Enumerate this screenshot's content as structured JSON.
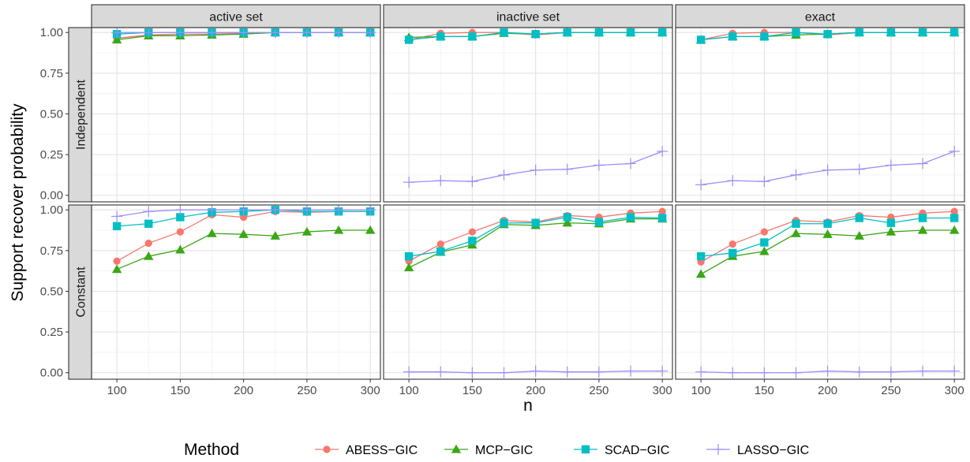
{
  "chart_data": {
    "type": "line",
    "facet_columns": [
      "active set",
      "inactive set",
      "exact"
    ],
    "facet_rows": [
      "Independent",
      "Constant"
    ],
    "xlabel": "n",
    "ylabel": "Support recover probability",
    "x": [
      100,
      125,
      150,
      175,
      200,
      225,
      250,
      275,
      300
    ],
    "x_ticks": [
      "100",
      "150",
      "200",
      "250",
      "300"
    ],
    "x_tick_values": [
      100,
      150,
      200,
      250,
      300
    ],
    "xlim": [
      80,
      308
    ],
    "y_ticks": [
      "0.00",
      "0.25",
      "0.50",
      "0.75",
      "1.00"
    ],
    "y_tick_values": [
      0,
      0.25,
      0.5,
      0.75,
      1.0
    ],
    "ylim": [
      -0.04,
      1.03
    ],
    "grid": true,
    "legend": {
      "title": "Method",
      "position": "bottom",
      "entries": [
        "ABESS−GIC",
        "MCP−GIC",
        "SCAD−GIC",
        "LASSO−GIC"
      ]
    },
    "series_styles": [
      {
        "name": "ABESS−GIC",
        "color": "#F8766D",
        "marker": "circle"
      },
      {
        "name": "MCP−GIC",
        "color": "#3BA716",
        "marker": "triangle"
      },
      {
        "name": "SCAD−GIC",
        "color": "#00BFC4",
        "marker": "square"
      },
      {
        "name": "LASSO−GIC",
        "color": "#A08CF8",
        "marker": "plus"
      }
    ],
    "panels": [
      {
        "row": "Independent",
        "col": "active set",
        "series": [
          {
            "name": "ABESS−GIC",
            "values": [
              0.965,
              0.985,
              0.99,
              0.99,
              0.995,
              1.0,
              1.0,
              1.0,
              1.0
            ]
          },
          {
            "name": "MCP−GIC",
            "values": [
              0.955,
              0.98,
              0.98,
              0.985,
              0.99,
              1.0,
              1.0,
              1.0,
              1.0
            ]
          },
          {
            "name": "SCAD−GIC",
            "values": [
              0.99,
              1.0,
              1.0,
              1.0,
              1.0,
              1.0,
              1.0,
              1.0,
              1.0
            ]
          },
          {
            "name": "LASSO−GIC",
            "values": [
              1.0,
              1.0,
              1.0,
              1.0,
              1.0,
              1.0,
              1.0,
              1.0,
              1.0
            ]
          }
        ]
      },
      {
        "row": "Independent",
        "col": "inactive set",
        "series": [
          {
            "name": "ABESS−GIC",
            "values": [
              0.955,
              0.995,
              1.0,
              1.0,
              0.985,
              1.0,
              1.0,
              1.0,
              1.0
            ]
          },
          {
            "name": "MCP−GIC",
            "values": [
              0.97,
              0.975,
              0.975,
              0.995,
              0.99,
              1.0,
              1.0,
              1.0,
              1.0
            ]
          },
          {
            "name": "SCAD−GIC",
            "values": [
              0.955,
              0.975,
              0.975,
              1.0,
              0.99,
              1.0,
              1.0,
              1.0,
              1.0
            ]
          },
          {
            "name": "LASSO−GIC",
            "values": [
              0.08,
              0.09,
              0.085,
              0.125,
              0.155,
              0.16,
              0.185,
              0.195,
              0.27
            ]
          }
        ]
      },
      {
        "row": "Independent",
        "col": "exact",
        "series": [
          {
            "name": "ABESS−GIC",
            "values": [
              0.955,
              0.995,
              1.0,
              1.0,
              0.985,
              1.0,
              1.0,
              1.0,
              1.0
            ]
          },
          {
            "name": "MCP−GIC",
            "values": [
              0.955,
              0.975,
              0.975,
              0.985,
              0.99,
              1.0,
              1.0,
              1.0,
              1.0
            ]
          },
          {
            "name": "SCAD−GIC",
            "values": [
              0.955,
              0.975,
              0.975,
              1.0,
              0.99,
              1.0,
              1.0,
              1.0,
              1.0
            ]
          },
          {
            "name": "LASSO−GIC",
            "values": [
              0.065,
              0.09,
              0.085,
              0.125,
              0.155,
              0.16,
              0.185,
              0.195,
              0.27
            ]
          }
        ]
      },
      {
        "row": "Constant",
        "col": "active set",
        "series": [
          {
            "name": "ABESS−GIC",
            "values": [
              0.685,
              0.795,
              0.865,
              0.97,
              0.955,
              0.99,
              0.985,
              0.99,
              0.99
            ]
          },
          {
            "name": "MCP−GIC",
            "values": [
              0.635,
              0.715,
              0.755,
              0.855,
              0.85,
              0.84,
              0.865,
              0.875,
              0.875
            ]
          },
          {
            "name": "SCAD−GIC",
            "values": [
              0.9,
              0.915,
              0.955,
              0.985,
              0.99,
              1.0,
              0.99,
              0.99,
              0.99
            ]
          },
          {
            "name": "LASSO−GIC",
            "values": [
              0.96,
              0.99,
              1.0,
              1.0,
              1.0,
              1.0,
              1.0,
              1.0,
              1.0
            ]
          }
        ]
      },
      {
        "row": "Constant",
        "col": "inactive set",
        "series": [
          {
            "name": "ABESS−GIC",
            "values": [
              0.685,
              0.79,
              0.865,
              0.935,
              0.925,
              0.965,
              0.955,
              0.98,
              0.99
            ]
          },
          {
            "name": "MCP−GIC",
            "values": [
              0.645,
              0.74,
              0.785,
              0.91,
              0.905,
              0.92,
              0.915,
              0.945,
              0.945
            ]
          },
          {
            "name": "SCAD−GIC",
            "values": [
              0.715,
              0.745,
              0.81,
              0.92,
              0.92,
              0.955,
              0.925,
              0.955,
              0.95
            ]
          },
          {
            "name": "LASSO−GIC",
            "values": [
              0.005,
              0.005,
              0.0,
              0.0,
              0.01,
              0.005,
              0.005,
              0.01,
              0.01
            ]
          }
        ]
      },
      {
        "row": "Constant",
        "col": "exact",
        "series": [
          {
            "name": "ABESS−GIC",
            "values": [
              0.68,
              0.79,
              0.865,
              0.935,
              0.925,
              0.965,
              0.955,
              0.98,
              0.99
            ]
          },
          {
            "name": "MCP−GIC",
            "values": [
              0.605,
              0.715,
              0.745,
              0.855,
              0.85,
              0.84,
              0.865,
              0.875,
              0.875
            ]
          },
          {
            "name": "SCAD−GIC",
            "values": [
              0.715,
              0.735,
              0.8,
              0.915,
              0.915,
              0.95,
              0.92,
              0.95,
              0.95
            ]
          },
          {
            "name": "LASSO−GIC",
            "values": [
              0.005,
              0.0,
              0.0,
              0.0,
              0.01,
              0.005,
              0.005,
              0.01,
              0.01
            ]
          }
        ]
      }
    ]
  }
}
